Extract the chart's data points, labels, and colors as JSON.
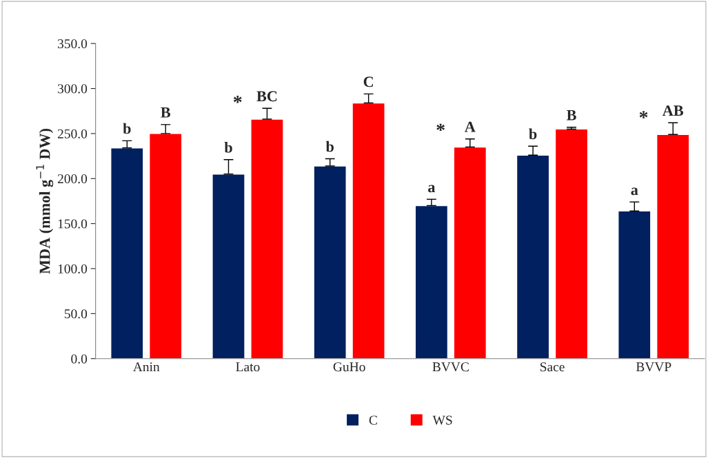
{
  "chart_data": {
    "type": "bar",
    "ylabel": "MDA (mmol g$^{−1}$ DW)",
    "categories": [
      "Anin",
      "Lato",
      "GuHo",
      "BVVC",
      "Sace",
      "BVVP"
    ],
    "series": [
      {
        "name": "C",
        "color": "#002060",
        "values": [
          234,
          205,
          214,
          170,
          226,
          164
        ],
        "errors": [
          8,
          16,
          8,
          7,
          10,
          10
        ],
        "value_labels": [
          "b",
          "b",
          "b",
          "a",
          "b",
          "a"
        ]
      },
      {
        "name": "WS",
        "color": "#ff0000",
        "values": [
          250,
          266,
          284,
          235,
          255,
          249
        ],
        "errors": [
          10,
          12,
          10,
          9,
          2,
          13
        ],
        "value_labels": [
          "B",
          "BC",
          "C",
          "A",
          "B",
          "AB"
        ]
      }
    ],
    "ylim": [
      0,
      350
    ],
    "yticks": [
      {
        "value": 0,
        "label": "0.0"
      },
      {
        "value": 50,
        "label": "50.0"
      },
      {
        "value": 100,
        "label": "100.0"
      },
      {
        "value": 150,
        "label": "150.0"
      },
      {
        "value": 200,
        "label": "200.0"
      },
      {
        "value": 250,
        "label": "250.0"
      },
      {
        "value": 300,
        "label": "300.0"
      },
      {
        "value": 350,
        "label": "350.0"
      }
    ],
    "annotations": [
      {
        "text": "*",
        "x": "Lato",
        "y": 266
      },
      {
        "text": "*",
        "x": "BVVC",
        "y": 235
      },
      {
        "text": "*",
        "x": "BVVP",
        "y": 249
      }
    ],
    "grid": false,
    "legend": "bottom"
  }
}
